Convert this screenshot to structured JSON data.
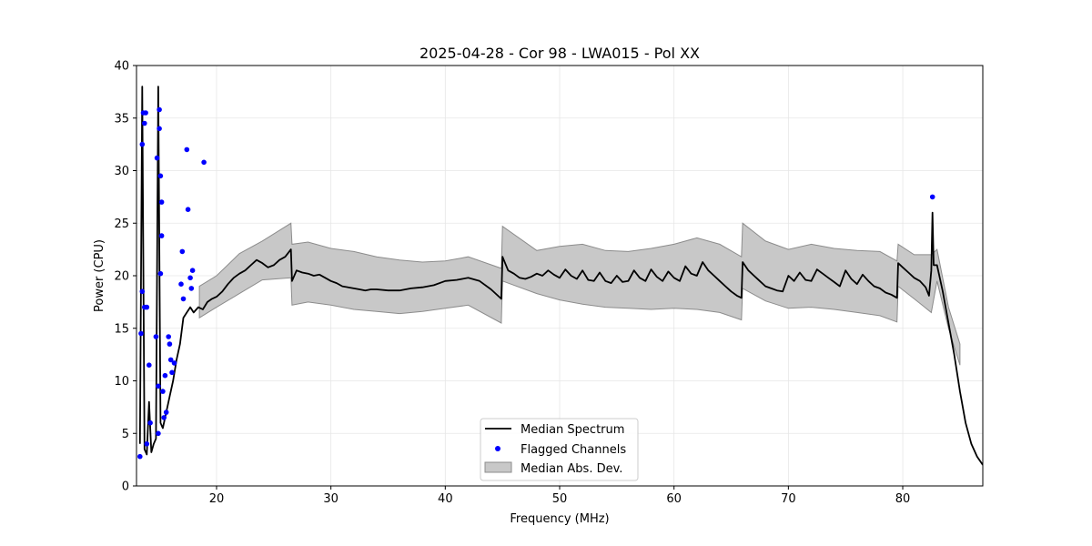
{
  "chart_data": {
    "type": "line",
    "title": "2025-04-28 - Cor 98 - LWA015 - Pol XX",
    "xlabel": "Frequency (MHz)",
    "ylabel": "Power (CPU)",
    "xlim": [
      13,
      87
    ],
    "ylim": [
      0,
      40
    ],
    "xticks": [
      20,
      30,
      40,
      50,
      60,
      70,
      80
    ],
    "yticks": [
      0,
      5,
      10,
      15,
      20,
      25,
      30,
      35,
      40
    ],
    "grid": true,
    "legend_location": "lower-center",
    "colors": {
      "median": "#000000",
      "flagged": "#0000ff",
      "mad_fill": "#c8c8c8",
      "mad_edge": "#8c8c8c"
    },
    "series": [
      {
        "name": "Median Spectrum",
        "style": "line",
        "x": [
          13.3,
          13.5,
          13.7,
          13.9,
          14.1,
          14.3,
          14.5,
          14.7,
          14.9,
          15.1,
          15.3,
          15.6,
          15.9,
          16.2,
          16.5,
          16.8,
          17.1,
          17.4,
          17.7,
          18.0,
          18.4,
          18.8,
          19.2,
          19.6,
          20.0,
          20.5,
          21.0,
          21.5,
          22.0,
          22.5,
          23.0,
          23.5,
          24.0,
          24.5,
          25.0,
          25.5,
          26.0,
          26.5,
          26.6,
          27.0,
          27.5,
          28.0,
          28.5,
          29.0,
          29.5,
          30.0,
          30.5,
          31.0,
          31.5,
          32.0,
          32.5,
          33.0,
          33.5,
          34.0,
          35.0,
          36.0,
          37.0,
          38.0,
          39.0,
          40.0,
          41.0,
          42.0,
          43.0,
          44.0,
          44.9,
          45.0,
          45.5,
          46.0,
          46.5,
          47.0,
          47.5,
          48.0,
          48.5,
          49.0,
          49.5,
          50.0,
          50.5,
          51.0,
          51.5,
          52.0,
          52.5,
          53.0,
          53.5,
          54.0,
          54.5,
          55.0,
          55.5,
          56.0,
          56.5,
          57.0,
          57.5,
          58.0,
          58.5,
          59.0,
          59.5,
          60.0,
          60.5,
          61.0,
          61.5,
          62.0,
          62.5,
          63.0,
          63.5,
          64.0,
          64.5,
          65.0,
          65.5,
          65.9,
          66.0,
          66.5,
          67.0,
          67.5,
          68.0,
          68.5,
          69.0,
          69.5,
          70.0,
          70.5,
          71.0,
          71.5,
          72.0,
          72.5,
          73.0,
          73.5,
          74.0,
          74.5,
          75.0,
          75.5,
          76.0,
          76.5,
          77.0,
          77.5,
          78.0,
          78.5,
          79.0,
          79.5,
          79.6,
          80.0,
          80.5,
          81.0,
          81.5,
          82.0,
          82.3,
          82.5,
          82.6,
          82.7,
          83.0,
          83.5,
          84.0,
          84.5,
          85.0,
          85.5,
          86.0,
          86.5,
          87.0
        ],
        "y": [
          4.0,
          38.0,
          3.5,
          3.0,
          8.0,
          3.2,
          4.0,
          4.5,
          38.0,
          6.0,
          5.5,
          7.0,
          8.5,
          10.0,
          12.0,
          13.5,
          16.0,
          16.5,
          17.0,
          16.5,
          17.0,
          16.8,
          17.5,
          17.8,
          18.0,
          18.5,
          19.2,
          19.8,
          20.2,
          20.5,
          21.0,
          21.5,
          21.2,
          20.8,
          21.0,
          21.5,
          21.8,
          22.5,
          19.5,
          20.5,
          20.3,
          20.2,
          20.0,
          20.1,
          19.8,
          19.5,
          19.3,
          19.0,
          18.9,
          18.8,
          18.7,
          18.6,
          18.7,
          18.7,
          18.6,
          18.6,
          18.8,
          18.9,
          19.1,
          19.5,
          19.6,
          19.8,
          19.5,
          18.7,
          17.8,
          21.8,
          20.5,
          20.2,
          19.8,
          19.7,
          19.9,
          20.2,
          20.0,
          20.5,
          20.1,
          19.8,
          20.6,
          20.0,
          19.7,
          20.5,
          19.6,
          19.5,
          20.3,
          19.5,
          19.3,
          20.0,
          19.4,
          19.5,
          20.5,
          19.8,
          19.5,
          20.6,
          19.9,
          19.5,
          20.4,
          19.8,
          19.5,
          20.9,
          20.2,
          20.0,
          21.3,
          20.5,
          20.0,
          19.5,
          19.0,
          18.5,
          18.1,
          17.9,
          21.3,
          20.5,
          20.0,
          19.5,
          19.0,
          18.8,
          18.6,
          18.5,
          20.0,
          19.5,
          20.3,
          19.6,
          19.5,
          20.6,
          20.2,
          19.8,
          19.4,
          19.0,
          20.5,
          19.7,
          19.2,
          20.1,
          19.5,
          19.0,
          18.8,
          18.4,
          18.2,
          17.9,
          21.2,
          20.8,
          20.3,
          19.8,
          19.5,
          18.9,
          18.1,
          20.5,
          26.0,
          21.0,
          21.0,
          18.5,
          15.5,
          12.5,
          9.0,
          6.0,
          4.0,
          2.8,
          2.0
        ]
      },
      {
        "name": "Flagged Channels",
        "style": "points",
        "x": [
          13.3,
          13.4,
          13.5,
          13.5,
          13.6,
          13.7,
          13.7,
          13.8,
          13.9,
          13.9,
          14.1,
          14.2,
          14.7,
          14.8,
          14.9,
          14.9,
          15.0,
          15.0,
          15.1,
          15.1,
          15.2,
          15.2,
          15.3,
          15.4,
          15.5,
          15.6,
          15.8,
          15.9,
          16.0,
          16.1,
          16.3,
          16.9,
          17.0,
          17.1,
          17.4,
          17.5,
          17.7,
          17.8,
          17.9,
          18.9,
          82.6
        ],
        "y": [
          2.8,
          14.5,
          32.5,
          18.5,
          35.5,
          34.5,
          17.0,
          35.5,
          17.0,
          4.0,
          11.5,
          6.0,
          14.2,
          31.2,
          9.5,
          5.0,
          34.0,
          35.8,
          20.2,
          29.5,
          27.0,
          23.8,
          9.0,
          6.5,
          10.5,
          7.0,
          14.2,
          13.5,
          12.0,
          10.8,
          11.7,
          19.2,
          22.3,
          17.8,
          32.0,
          26.3,
          19.8,
          18.8,
          20.5,
          30.8,
          27.5
        ]
      },
      {
        "name": "Median Abs. Dev.",
        "style": "band",
        "x": [
          18.5,
          20.0,
          22.0,
          24.0,
          26.5,
          26.6,
          28.0,
          30.0,
          32.0,
          34.0,
          36.0,
          38.0,
          40.0,
          42.0,
          44.9,
          45.0,
          48.0,
          50.0,
          52.0,
          54.0,
          56.0,
          58.0,
          60.0,
          62.0,
          64.0,
          65.9,
          66.0,
          68.0,
          70.0,
          72.0,
          74.0,
          76.0,
          78.0,
          79.5,
          79.6,
          81.0,
          82.5,
          83.0,
          84.0,
          85.0
        ],
        "lower": [
          16.0,
          17.0,
          18.3,
          19.6,
          19.8,
          17.2,
          17.5,
          17.2,
          16.8,
          16.6,
          16.4,
          16.6,
          16.9,
          17.2,
          15.5,
          19.5,
          18.3,
          17.7,
          17.3,
          17.0,
          16.9,
          16.8,
          16.9,
          16.8,
          16.5,
          15.8,
          18.8,
          17.6,
          16.9,
          17.0,
          16.8,
          16.5,
          16.2,
          15.6,
          19.0,
          17.8,
          16.5,
          19.5,
          15.0,
          11.5
        ],
        "upper": [
          19.0,
          20.0,
          22.1,
          23.3,
          25.0,
          23.0,
          23.2,
          22.6,
          22.3,
          21.8,
          21.5,
          21.3,
          21.4,
          21.8,
          20.7,
          24.7,
          22.4,
          22.8,
          23.0,
          22.4,
          22.3,
          22.6,
          23.0,
          23.6,
          23.0,
          21.8,
          25.0,
          23.3,
          22.5,
          23.0,
          22.6,
          22.4,
          22.3,
          21.4,
          23.0,
          22.0,
          22.0,
          22.5,
          17.0,
          13.5
        ]
      }
    ]
  }
}
